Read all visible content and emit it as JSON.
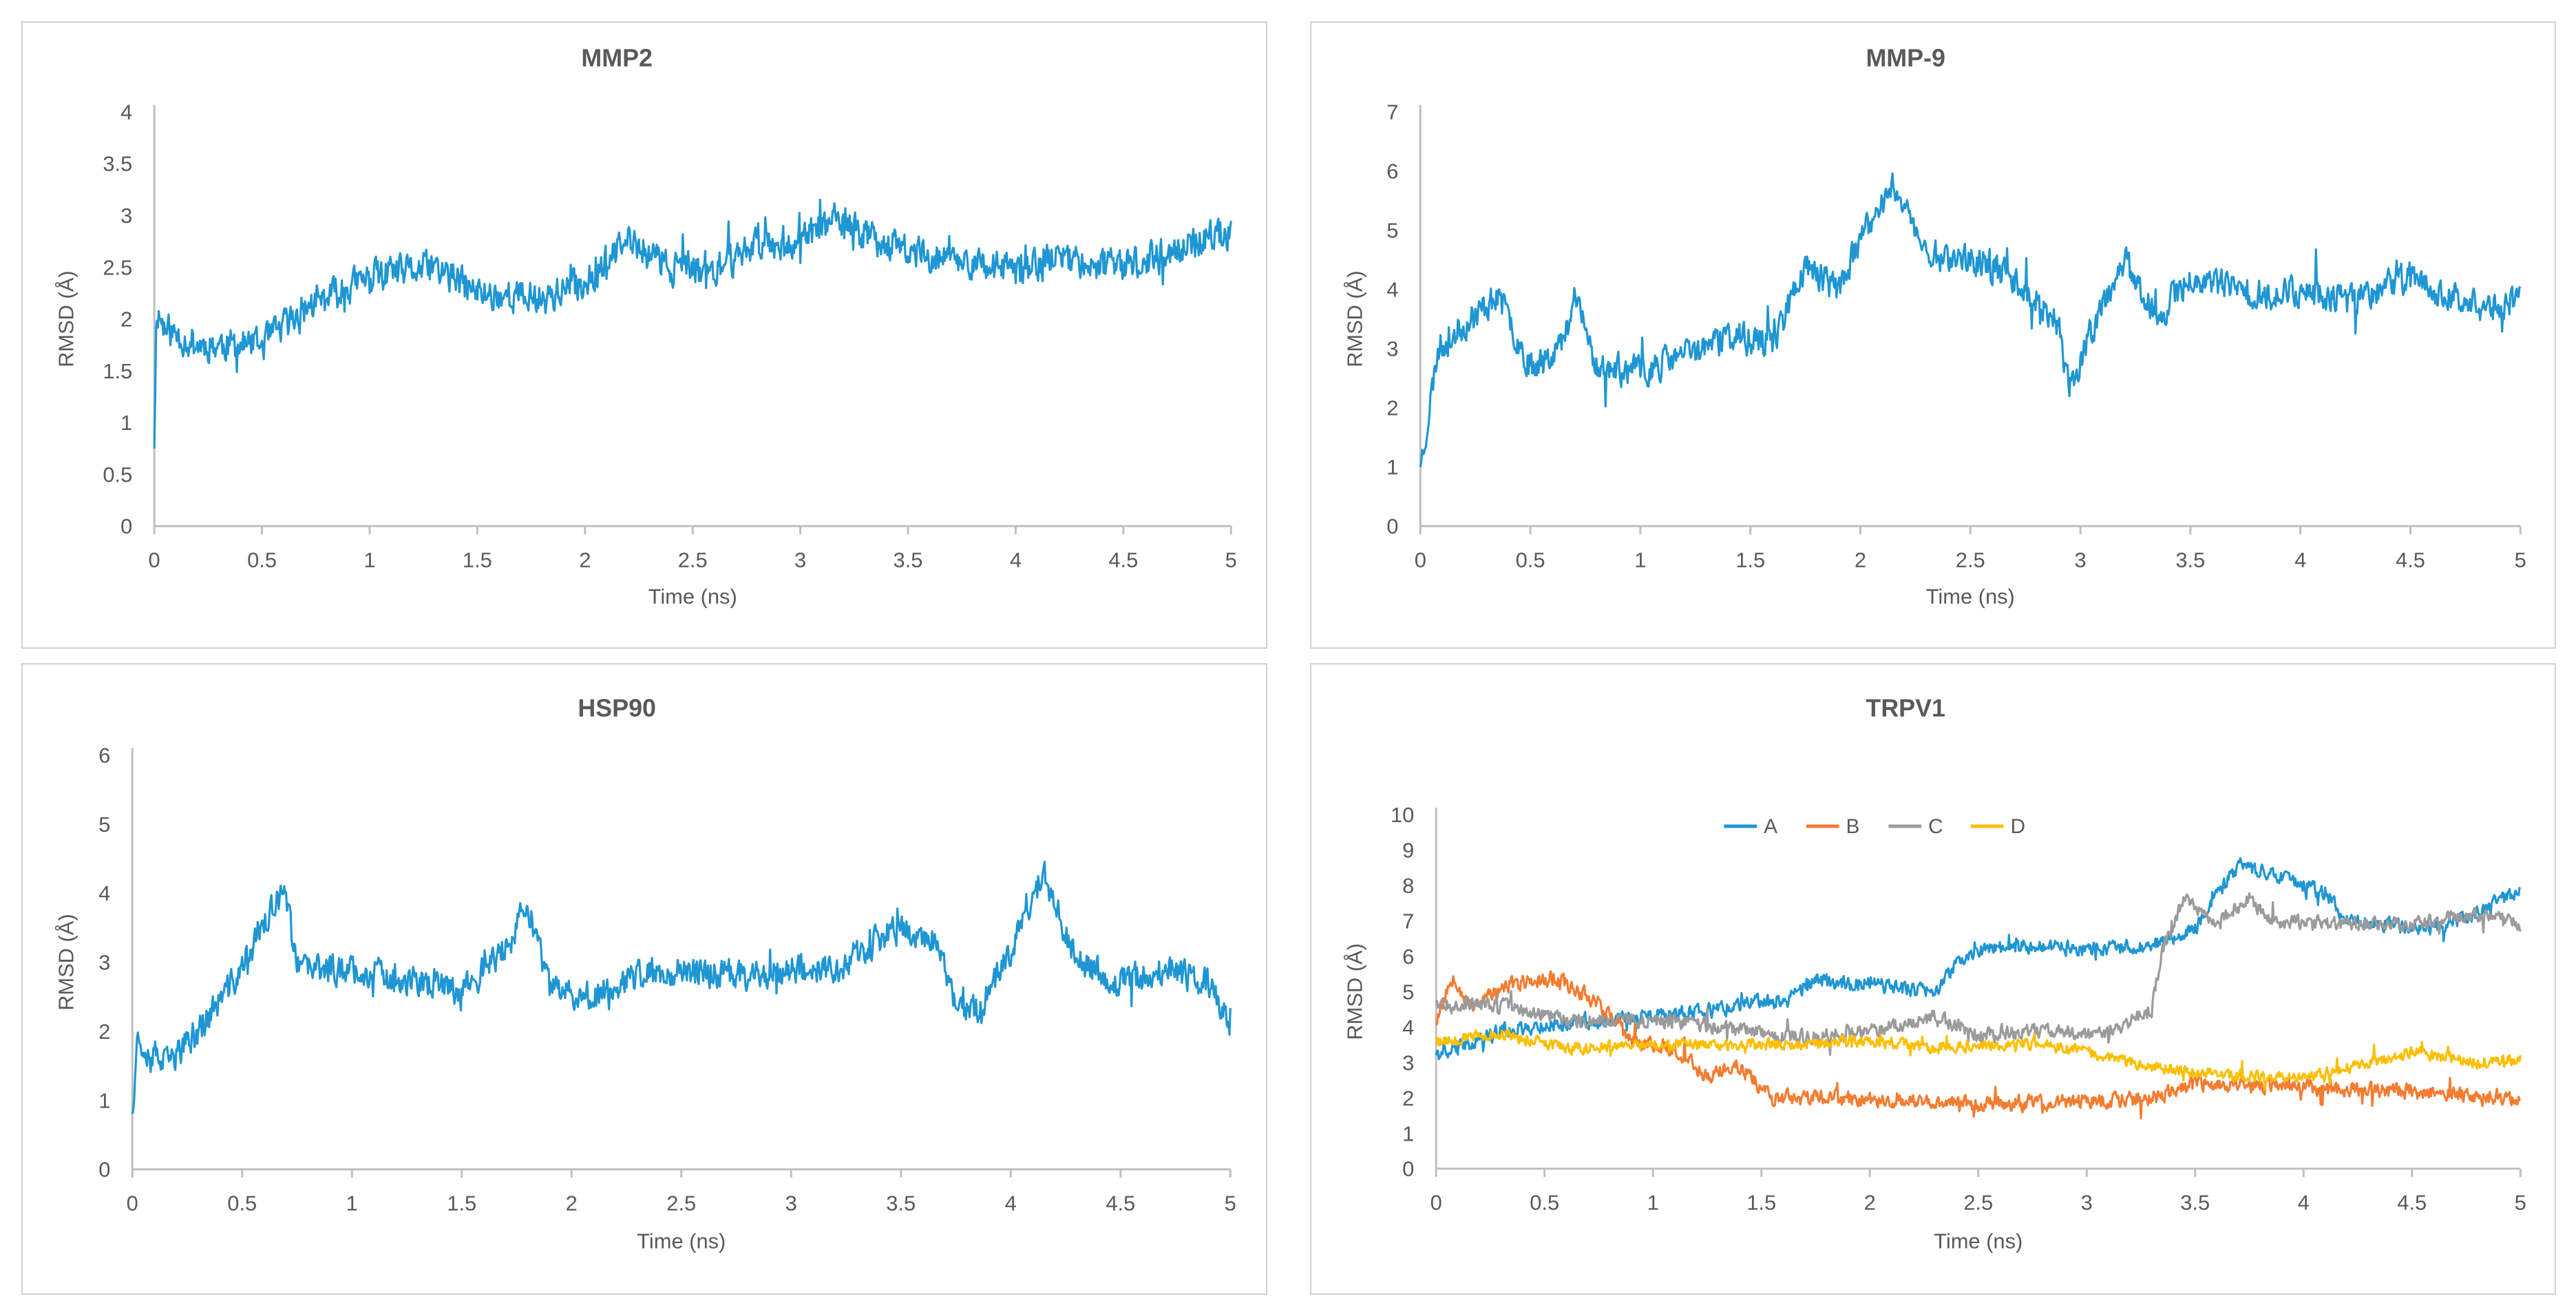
{
  "chart_data": [
    {
      "type": "line",
      "title": "MMP2",
      "xlabel": "Time (ns)",
      "ylabel": "RMSD (Å)",
      "xlim": [
        0,
        5
      ],
      "ylim": [
        0,
        4
      ],
      "xticks": [
        "0",
        "0.5",
        "1",
        "1.5",
        "2",
        "2.5",
        "3",
        "3.5",
        "4",
        "4.5",
        "5"
      ],
      "yticks": [
        "0",
        "0.5",
        "1",
        "1.5",
        "2",
        "2.5",
        "3",
        "3.5",
        "4"
      ],
      "series": [
        {
          "name": "RMSD",
          "color": "#1f96d3",
          "noise": 0.22,
          "seed": 11,
          "trend": [
            [
              0,
              0.75
            ],
            [
              0.01,
              2.1
            ],
            [
              0.05,
              1.9
            ],
            [
              0.2,
              1.75
            ],
            [
              0.5,
              1.75
            ],
            [
              0.7,
              2.1
            ],
            [
              1.0,
              2.4
            ],
            [
              1.3,
              2.5
            ],
            [
              1.5,
              2.25
            ],
            [
              1.8,
              2.2
            ],
            [
              2.0,
              2.35
            ],
            [
              2.2,
              2.75
            ],
            [
              2.4,
              2.5
            ],
            [
              2.6,
              2.45
            ],
            [
              2.8,
              2.75
            ],
            [
              3.0,
              2.75
            ],
            [
              3.15,
              2.95
            ],
            [
              3.5,
              2.65
            ],
            [
              3.8,
              2.55
            ],
            [
              4.0,
              2.45
            ],
            [
              4.2,
              2.6
            ],
            [
              4.5,
              2.5
            ],
            [
              4.8,
              2.7
            ],
            [
              5.0,
              2.85
            ]
          ]
        }
      ]
    },
    {
      "type": "line",
      "title": "MMP-9",
      "xlabel": "Time (ns)",
      "ylabel": "RMSD (Å)",
      "xlim": [
        0,
        5
      ],
      "ylim": [
        0,
        7
      ],
      "xticks": [
        "0",
        "0.5",
        "1",
        "1.5",
        "2",
        "2.5",
        "3",
        "3.5",
        "4",
        "4.5",
        "5"
      ],
      "yticks": [
        "0",
        "1",
        "2",
        "3",
        "4",
        "5",
        "6",
        "7"
      ],
      "series": [
        {
          "name": "RMSD",
          "color": "#1f96d3",
          "noise": 0.35,
          "seed": 23,
          "trend": [
            [
              0,
              1.0
            ],
            [
              0.03,
              1.7
            ],
            [
              0.08,
              3.0
            ],
            [
              0.2,
              3.4
            ],
            [
              0.35,
              3.9
            ],
            [
              0.5,
              2.7
            ],
            [
              0.65,
              3.1
            ],
            [
              0.7,
              3.9
            ],
            [
              0.8,
              2.7
            ],
            [
              1.0,
              2.6
            ],
            [
              1.2,
              2.9
            ],
            [
              1.4,
              3.2
            ],
            [
              1.6,
              3.1
            ],
            [
              1.75,
              4.4
            ],
            [
              1.9,
              4.0
            ],
            [
              2.0,
              4.8
            ],
            [
              2.15,
              5.8
            ],
            [
              2.3,
              4.6
            ],
            [
              2.5,
              4.5
            ],
            [
              2.7,
              4.2
            ],
            [
              2.9,
              3.4
            ],
            [
              2.95,
              2.3
            ],
            [
              3.05,
              3.3
            ],
            [
              3.2,
              4.5
            ],
            [
              3.35,
              3.5
            ],
            [
              3.5,
              4.2
            ],
            [
              3.8,
              3.9
            ],
            [
              4.0,
              4.0
            ],
            [
              4.2,
              3.8
            ],
            [
              4.5,
              4.2
            ],
            [
              4.6,
              4.0
            ],
            [
              4.8,
              3.7
            ],
            [
              5.0,
              3.8
            ]
          ]
        }
      ]
    },
    {
      "type": "line",
      "title": "HSP90",
      "xlabel": "Time (ns)",
      "ylabel": "RMSD (Å)",
      "xlim": [
        0,
        5
      ],
      "ylim": [
        0,
        6
      ],
      "xticks": [
        "0",
        "0.5",
        "1",
        "1.5",
        "2",
        "2.5",
        "3",
        "3.5",
        "4",
        "4.5",
        "5"
      ],
      "yticks": [
        "0",
        "1",
        "2",
        "3",
        "4",
        "5",
        "6"
      ],
      "series": [
        {
          "name": "RMSD",
          "color": "#1f96d3",
          "noise": 0.3,
          "seed": 37,
          "trend": [
            [
              0,
              0.8
            ],
            [
              0.02,
              1.9
            ],
            [
              0.15,
              1.5
            ],
            [
              0.3,
              2.0
            ],
            [
              0.5,
              2.9
            ],
            [
              0.6,
              3.6
            ],
            [
              0.7,
              4.0
            ],
            [
              0.75,
              2.9
            ],
            [
              1.0,
              2.9
            ],
            [
              1.3,
              2.7
            ],
            [
              1.5,
              2.6
            ],
            [
              1.7,
              3.2
            ],
            [
              1.8,
              3.8
            ],
            [
              1.9,
              2.6
            ],
            [
              2.1,
              2.5
            ],
            [
              2.3,
              2.8
            ],
            [
              2.5,
              2.9
            ],
            [
              2.8,
              2.8
            ],
            [
              3.0,
              2.9
            ],
            [
              3.2,
              2.9
            ],
            [
              3.5,
              3.5
            ],
            [
              3.65,
              3.3
            ],
            [
              3.75,
              2.4
            ],
            [
              3.85,
              2.3
            ],
            [
              4.0,
              3.2
            ],
            [
              4.15,
              4.3
            ],
            [
              4.3,
              3.0
            ],
            [
              4.5,
              2.7
            ],
            [
              4.7,
              2.9
            ],
            [
              4.9,
              2.7
            ],
            [
              5.0,
              2.1
            ]
          ]
        }
      ]
    },
    {
      "type": "line",
      "title": "TRPV1",
      "xlabel": "Time (ns)",
      "ylabel": "RMSD (Å)",
      "xlim": [
        0,
        5
      ],
      "ylim": [
        0,
        10
      ],
      "xticks": [
        "0",
        "0.5",
        "1",
        "1.5",
        "2",
        "2.5",
        "3",
        "3.5",
        "4",
        "4.5",
        "5"
      ],
      "yticks": [
        "0",
        "1",
        "2",
        "3",
        "4",
        "5",
        "6",
        "7",
        "8",
        "9",
        "10"
      ],
      "legend": "top",
      "series": [
        {
          "name": "A",
          "color": "#1f96d3",
          "noise": 0.28,
          "seed": 41,
          "trend": [
            [
              0,
              3.2
            ],
            [
              0.3,
              3.9
            ],
            [
              0.6,
              4.1
            ],
            [
              1.0,
              4.3
            ],
            [
              1.3,
              4.5
            ],
            [
              1.6,
              4.8
            ],
            [
              1.75,
              5.3
            ],
            [
              2.0,
              5.2
            ],
            [
              2.3,
              5.0
            ],
            [
              2.45,
              6.1
            ],
            [
              2.7,
              6.3
            ],
            [
              3.0,
              6.2
            ],
            [
              3.3,
              6.3
            ],
            [
              3.5,
              6.8
            ],
            [
              3.7,
              8.6
            ],
            [
              3.9,
              8.2
            ],
            [
              4.1,
              7.8
            ],
            [
              4.2,
              7.0
            ],
            [
              4.4,
              6.9
            ],
            [
              4.6,
              6.8
            ],
            [
              4.8,
              7.2
            ],
            [
              5.0,
              7.9
            ]
          ]
        },
        {
          "name": "B",
          "color": "#f47c30",
          "noise": 0.3,
          "seed": 53,
          "trend": [
            [
              0,
              4.2
            ],
            [
              0.08,
              5.5
            ],
            [
              0.15,
              4.6
            ],
            [
              0.35,
              5.2
            ],
            [
              0.55,
              5.4
            ],
            [
              0.75,
              4.7
            ],
            [
              0.9,
              3.6
            ],
            [
              1.1,
              3.4
            ],
            [
              1.25,
              2.6
            ],
            [
              1.4,
              2.9
            ],
            [
              1.55,
              2.0
            ],
            [
              1.8,
              2.0
            ],
            [
              2.2,
              1.9
            ],
            [
              2.6,
              1.8
            ],
            [
              3.0,
              1.9
            ],
            [
              3.3,
              2.0
            ],
            [
              3.5,
              2.4
            ],
            [
              4.0,
              2.3
            ],
            [
              4.5,
              2.2
            ],
            [
              5.0,
              2.0
            ]
          ]
        },
        {
          "name": "C",
          "color": "#9b9b9b",
          "noise": 0.27,
          "seed": 67,
          "trend": [
            [
              0,
              4.7
            ],
            [
              0.3,
              4.6
            ],
            [
              0.6,
              4.2
            ],
            [
              1.0,
              4.2
            ],
            [
              1.3,
              4.0
            ],
            [
              1.6,
              3.7
            ],
            [
              2.0,
              3.9
            ],
            [
              2.3,
              4.3
            ],
            [
              2.5,
              3.8
            ],
            [
              2.8,
              3.9
            ],
            [
              3.1,
              3.8
            ],
            [
              3.3,
              4.5
            ],
            [
              3.35,
              6.2
            ],
            [
              3.45,
              7.6
            ],
            [
              3.6,
              7.0
            ],
            [
              3.75,
              7.6
            ],
            [
              3.85,
              7.0
            ],
            [
              4.2,
              6.9
            ],
            [
              4.5,
              6.9
            ],
            [
              4.8,
              7.2
            ],
            [
              5.0,
              6.9
            ]
          ]
        },
        {
          "name": "D",
          "color": "#fcbf00",
          "noise": 0.22,
          "seed": 79,
          "trend": [
            [
              0,
              3.6
            ],
            [
              0.3,
              3.8
            ],
            [
              0.6,
              3.4
            ],
            [
              1.0,
              3.5
            ],
            [
              1.3,
              3.5
            ],
            [
              1.6,
              3.5
            ],
            [
              2.0,
              3.6
            ],
            [
              2.3,
              3.4
            ],
            [
              2.5,
              3.5
            ],
            [
              2.8,
              3.5
            ],
            [
              3.0,
              3.3
            ],
            [
              3.3,
              2.9
            ],
            [
              3.5,
              2.7
            ],
            [
              3.8,
              2.6
            ],
            [
              4.0,
              2.6
            ],
            [
              4.3,
              3.0
            ],
            [
              4.5,
              3.3
            ],
            [
              4.8,
              3.0
            ],
            [
              5.0,
              3.1
            ]
          ]
        }
      ]
    }
  ]
}
